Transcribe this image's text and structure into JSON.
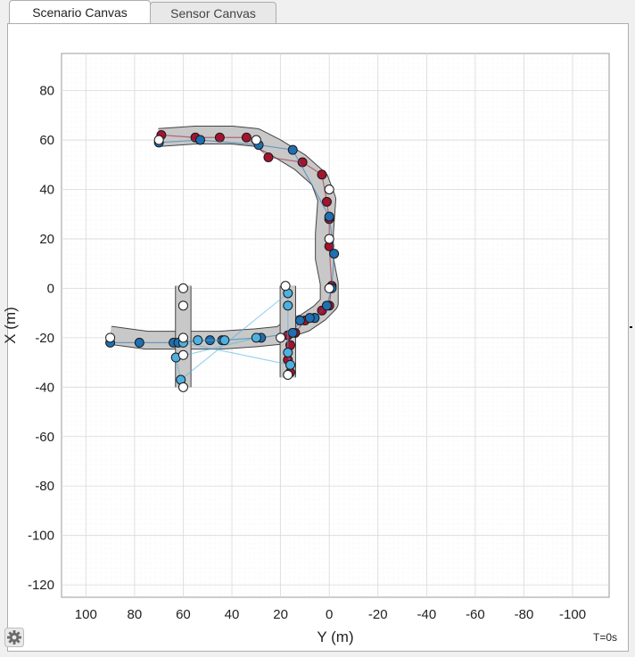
{
  "tabs": [
    {
      "label": "Scenario Canvas",
      "active": true
    },
    {
      "label": "Sensor Canvas",
      "active": false
    }
  ],
  "timestamp": "T=0s",
  "settings_icon": "gear-icon",
  "colors": {
    "road_fill": "#c8c8c8",
    "road_edge": "#444444",
    "actor_red": "#a3142e",
    "actor_blue": "#1f6fb2",
    "actor_light_blue": "#4fb0e0",
    "waypoint_white": "#ffffff"
  },
  "chart_data": {
    "type": "scatter",
    "title": "",
    "xlabel": "Y (m)",
    "ylabel": "X (m)",
    "xlim": [
      110,
      -115
    ],
    "ylim": [
      -125,
      95
    ],
    "x_reversed": true,
    "grid": true,
    "xticks": [
      100,
      80,
      60,
      40,
      20,
      0,
      -20,
      -40,
      -60,
      -80,
      -100
    ],
    "yticks": [
      80,
      60,
      40,
      20,
      0,
      -20,
      -40,
      -60,
      -80,
      -100,
      -120
    ],
    "roads": [
      {
        "points": [
          [
            70,
            61
          ],
          [
            55,
            62
          ],
          [
            40,
            62
          ],
          [
            30,
            61
          ],
          [
            22,
            57
          ],
          [
            12,
            51
          ],
          [
            4,
            44
          ],
          [
            1,
            36
          ],
          [
            2,
            22
          ],
          [
            2,
            12
          ],
          [
            0,
            2
          ],
          [
            0,
            -6
          ],
          [
            4,
            -10
          ],
          [
            10,
            -14
          ],
          [
            16,
            -16
          ],
          [
            20,
            -19
          ],
          [
            30,
            -20
          ],
          [
            45,
            -21
          ],
          [
            60,
            -21
          ],
          [
            75,
            -21
          ],
          [
            90,
            -19
          ]
        ],
        "width": 7
      },
      {
        "points": [
          [
            60,
            1
          ],
          [
            60,
            -40
          ]
        ],
        "width": 6
      },
      {
        "points": [
          [
            17,
            1
          ],
          [
            17,
            -36
          ]
        ],
        "width": 6
      }
    ],
    "series": [
      {
        "color": "red",
        "points": [
          [
            69,
            62
          ],
          [
            55,
            61
          ],
          [
            45,
            61
          ],
          [
            34,
            61
          ],
          [
            25,
            53
          ],
          [
            11,
            51
          ],
          [
            3,
            46
          ],
          [
            1,
            35
          ],
          [
            0,
            28
          ],
          [
            0,
            17
          ],
          [
            -1,
            1
          ],
          [
            0,
            -7
          ],
          [
            3,
            -9
          ],
          [
            6,
            -12
          ],
          [
            10,
            -13
          ],
          [
            14,
            -18
          ],
          [
            17,
            -19
          ],
          [
            16,
            -23
          ],
          [
            17,
            -29
          ],
          [
            16,
            -34
          ]
        ]
      },
      {
        "color": "blue",
        "points": [
          [
            70,
            59
          ],
          [
            53,
            60
          ],
          [
            29,
            58
          ],
          [
            15,
            56
          ],
          [
            0,
            29
          ],
          [
            -2,
            14
          ],
          [
            -1,
            0
          ],
          [
            1,
            -7
          ],
          [
            6,
            -12
          ],
          [
            8,
            -12
          ],
          [
            12,
            -13
          ],
          [
            15,
            -18
          ],
          [
            28,
            -20
          ],
          [
            44,
            -21
          ],
          [
            49,
            -21
          ],
          [
            64,
            -22
          ],
          [
            62,
            -22
          ],
          [
            78,
            -22
          ],
          [
            90,
            -22
          ]
        ]
      },
      {
        "color": "light-blue",
        "points": [
          [
            54,
            -21
          ],
          [
            43,
            -21
          ],
          [
            30,
            -20
          ],
          [
            63,
            -28
          ],
          [
            61,
            -37
          ],
          [
            17,
            -2
          ],
          [
            17,
            -7
          ],
          [
            17,
            -26
          ],
          [
            16,
            -31
          ],
          [
            60,
            -22
          ]
        ]
      },
      {
        "color": "white",
        "points": [
          [
            70,
            60
          ],
          [
            30,
            60
          ],
          [
            0,
            40
          ],
          [
            0,
            20
          ],
          [
            0,
            0
          ],
          [
            60,
            0
          ],
          [
            60,
            -7
          ],
          [
            60,
            -20
          ],
          [
            60,
            -27
          ],
          [
            60,
            -40
          ],
          [
            18,
            1
          ],
          [
            17,
            -35
          ],
          [
            90,
            -20
          ],
          [
            20,
            -20
          ]
        ]
      }
    ]
  }
}
